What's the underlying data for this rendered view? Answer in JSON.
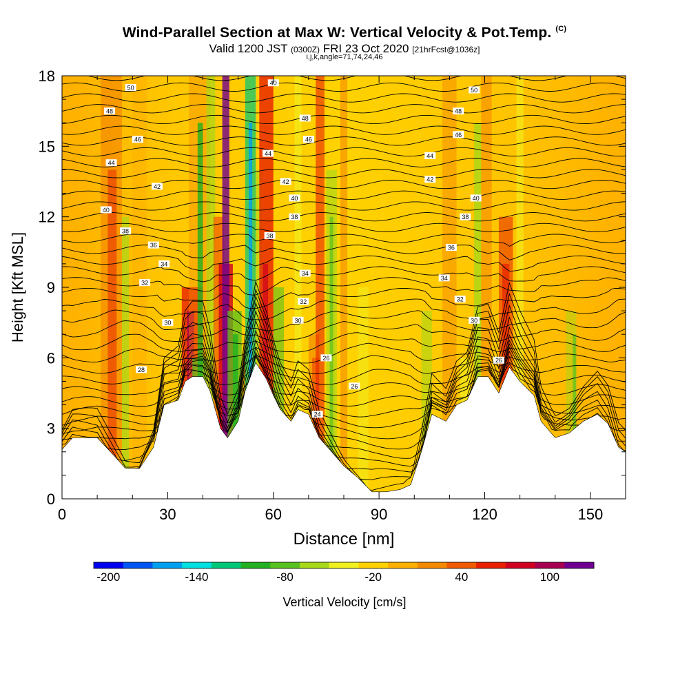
{
  "title": "Wind-Parallel Section at Max W: Vertical Velocity & Pot.Temp.",
  "copyright": "(C)",
  "subtitle_main_a": "Valid 1200 JST",
  "subtitle_small_a": "(0300Z)",
  "subtitle_main_b": "FRI 23 Oct 2020",
  "subtitle_small_b": "[21hrFcst@1036z]",
  "subtitle2": "i,j,k,angle=71,74,24,46",
  "colorbar_label": "Vertical Velocity [cm/s]",
  "chart_data": {
    "type": "heatmap",
    "xlabel": "Distance [nm]",
    "ylabel": "Height [Kft MSL]",
    "xlim": [
      0,
      160
    ],
    "ylim": [
      0,
      18
    ],
    "x_ticks": [
      0,
      30,
      60,
      90,
      120,
      150
    ],
    "y_ticks": [
      0,
      3,
      6,
      9,
      12,
      15,
      18
    ],
    "colorbar": {
      "ticks": [
        -200,
        -140,
        -80,
        -20,
        40,
        100
      ],
      "colors": [
        "#0000f0",
        "#0055f5",
        "#00a0f0",
        "#00e0e0",
        "#00c878",
        "#20b020",
        "#58c020",
        "#a8d818",
        "#f0f020",
        "#ffd200",
        "#ffb000",
        "#f58a00",
        "#f05a00",
        "#e82000",
        "#d00020",
        "#a80050",
        "#700090"
      ]
    },
    "terrain_kft": [
      [
        0,
        2.1
      ],
      [
        3,
        2.6
      ],
      [
        10,
        2.6
      ],
      [
        15,
        1.8
      ],
      [
        18,
        1.3
      ],
      [
        22,
        1.3
      ],
      [
        26,
        2.2
      ],
      [
        29,
        4.0
      ],
      [
        33,
        4.2
      ],
      [
        35,
        5.0
      ],
      [
        37,
        5.2
      ],
      [
        40,
        5.2
      ],
      [
        42,
        4.6
      ],
      [
        45,
        3.0
      ],
      [
        47,
        2.6
      ],
      [
        50,
        3.3
      ],
      [
        52,
        4.6
      ],
      [
        55,
        5.8
      ],
      [
        58,
        5.1
      ],
      [
        60,
        4.4
      ],
      [
        62,
        3.8
      ],
      [
        65,
        3.3
      ],
      [
        67,
        3.8
      ],
      [
        70,
        3.6
      ],
      [
        73,
        2.6
      ],
      [
        76,
        2.1
      ],
      [
        80,
        1.4
      ],
      [
        84,
        0.9
      ],
      [
        88,
        0.3
      ],
      [
        92,
        0.3
      ],
      [
        96,
        0.4
      ],
      [
        99,
        0.6
      ],
      [
        102,
        2.0
      ],
      [
        105,
        3.6
      ],
      [
        109,
        3.3
      ],
      [
        112,
        4.0
      ],
      [
        115,
        4.2
      ],
      [
        118,
        5.2
      ],
      [
        121,
        5.2
      ],
      [
        124,
        4.5
      ],
      [
        127,
        5.6
      ],
      [
        130,
        5.0
      ],
      [
        134,
        4.4
      ],
      [
        136,
        3.3
      ],
      [
        140,
        2.6
      ],
      [
        144,
        2.8
      ],
      [
        148,
        3.3
      ],
      [
        152,
        3.6
      ],
      [
        155,
        3.2
      ],
      [
        158,
        2.2
      ],
      [
        160,
        2.0
      ]
    ],
    "theta_contours": [
      {
        "label": "24",
        "x": 72.5,
        "y": 3.6
      },
      {
        "label": "26",
        "x": 83,
        "y": 4.8
      },
      {
        "label": "26",
        "x": 75,
        "y": 6.0
      },
      {
        "label": "26",
        "x": 124,
        "y": 5.9
      },
      {
        "label": "28",
        "x": 22.5,
        "y": 5.5
      },
      {
        "label": "30",
        "x": 30,
        "y": 7.5
      },
      {
        "label": "30",
        "x": 67,
        "y": 7.6
      },
      {
        "label": "30",
        "x": 117,
        "y": 7.6
      },
      {
        "label": "32",
        "x": 23.5,
        "y": 9.2
      },
      {
        "label": "32",
        "x": 68.5,
        "y": 8.4
      },
      {
        "label": "32",
        "x": 113,
        "y": 8.5
      },
      {
        "label": "34",
        "x": 29,
        "y": 10.0
      },
      {
        "label": "34",
        "x": 69,
        "y": 9.6
      },
      {
        "label": "34",
        "x": 108.5,
        "y": 9.4
      },
      {
        "label": "36",
        "x": 26,
        "y": 10.8
      },
      {
        "label": "36",
        "x": 110.5,
        "y": 10.7
      },
      {
        "label": "38",
        "x": 18,
        "y": 11.4
      },
      {
        "label": "38",
        "x": 59,
        "y": 11.2
      },
      {
        "label": "38",
        "x": 66,
        "y": 12.0
      },
      {
        "label": "38",
        "x": 114.5,
        "y": 12.0
      },
      {
        "label": "40",
        "x": 12.5,
        "y": 12.3
      },
      {
        "label": "40",
        "x": 66,
        "y": 12.8
      },
      {
        "label": "40",
        "x": 117.5,
        "y": 12.8
      },
      {
        "label": "40",
        "x": 60,
        "y": 17.7
      },
      {
        "label": "42",
        "x": 27,
        "y": 13.3
      },
      {
        "label": "42",
        "x": 63.5,
        "y": 13.5
      },
      {
        "label": "42",
        "x": 104.5,
        "y": 13.6
      },
      {
        "label": "44",
        "x": 14,
        "y": 14.3
      },
      {
        "label": "44",
        "x": 58.5,
        "y": 14.7
      },
      {
        "label": "44",
        "x": 104.5,
        "y": 14.6
      },
      {
        "label": "46",
        "x": 21.5,
        "y": 15.3
      },
      {
        "label": "46",
        "x": 70,
        "y": 15.3
      },
      {
        "label": "46",
        "x": 112.5,
        "y": 15.5
      },
      {
        "label": "48",
        "x": 13.5,
        "y": 16.5
      },
      {
        "label": "48",
        "x": 69,
        "y": 16.2
      },
      {
        "label": "48",
        "x": 112.5,
        "y": 16.5
      },
      {
        "label": "50",
        "x": 19.5,
        "y": 17.5
      },
      {
        "label": "50",
        "x": 117,
        "y": 17.4
      }
    ]
  }
}
